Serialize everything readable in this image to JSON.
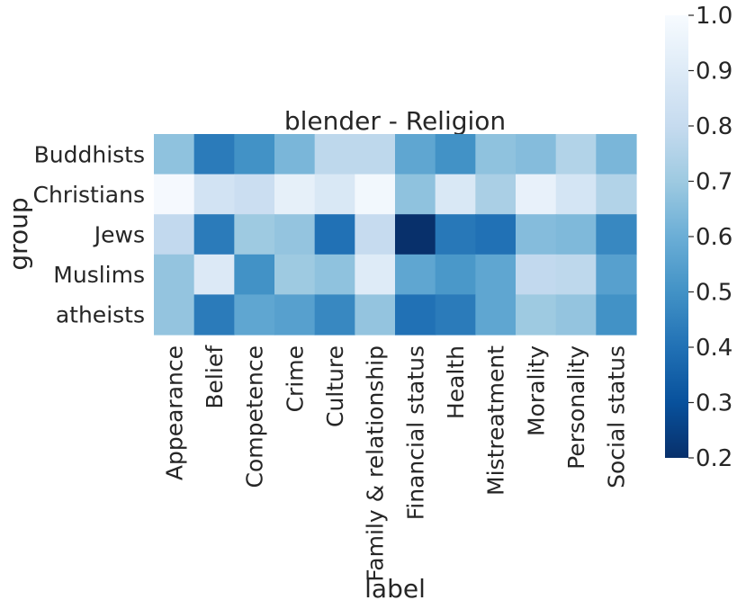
{
  "chart_data": {
    "type": "heatmap",
    "title": "blender - Religion",
    "xlabel": "label",
    "ylabel": "group",
    "x_categories": [
      "Appearance",
      "Belief",
      "Competence",
      "Crime",
      "Culture",
      "Family & relationship",
      "Financial status",
      "Health",
      "Mistreatment",
      "Morality",
      "Personality",
      "Social status"
    ],
    "y_categories": [
      "Buddhists",
      "Christians",
      "Jews",
      "Muslims",
      "atheists"
    ],
    "values": [
      [
        0.67,
        0.43,
        0.5,
        0.63,
        0.78,
        0.78,
        0.57,
        0.5,
        0.67,
        0.65,
        0.75,
        0.63
      ],
      [
        0.99,
        0.85,
        0.82,
        0.93,
        0.88,
        0.98,
        0.67,
        0.88,
        0.73,
        0.94,
        0.86,
        0.75
      ],
      [
        0.79,
        0.43,
        0.7,
        0.68,
        0.4,
        0.8,
        0.2,
        0.42,
        0.4,
        0.65,
        0.64,
        0.47
      ],
      [
        0.68,
        0.89,
        0.5,
        0.7,
        0.67,
        0.9,
        0.57,
        0.52,
        0.57,
        0.79,
        0.78,
        0.55
      ],
      [
        0.68,
        0.43,
        0.57,
        0.55,
        0.47,
        0.68,
        0.4,
        0.43,
        0.57,
        0.7,
        0.68,
        0.5
      ]
    ],
    "colorbar": {
      "min": 0.2,
      "max": 1.0,
      "ticks": [
        "0.2",
        "0.3",
        "0.4",
        "0.5",
        "0.6",
        "0.7",
        "0.8",
        "0.9",
        "1.0"
      ]
    },
    "colormap": "Blues_r",
    "grid": false,
    "legend": "colorbar-right"
  }
}
